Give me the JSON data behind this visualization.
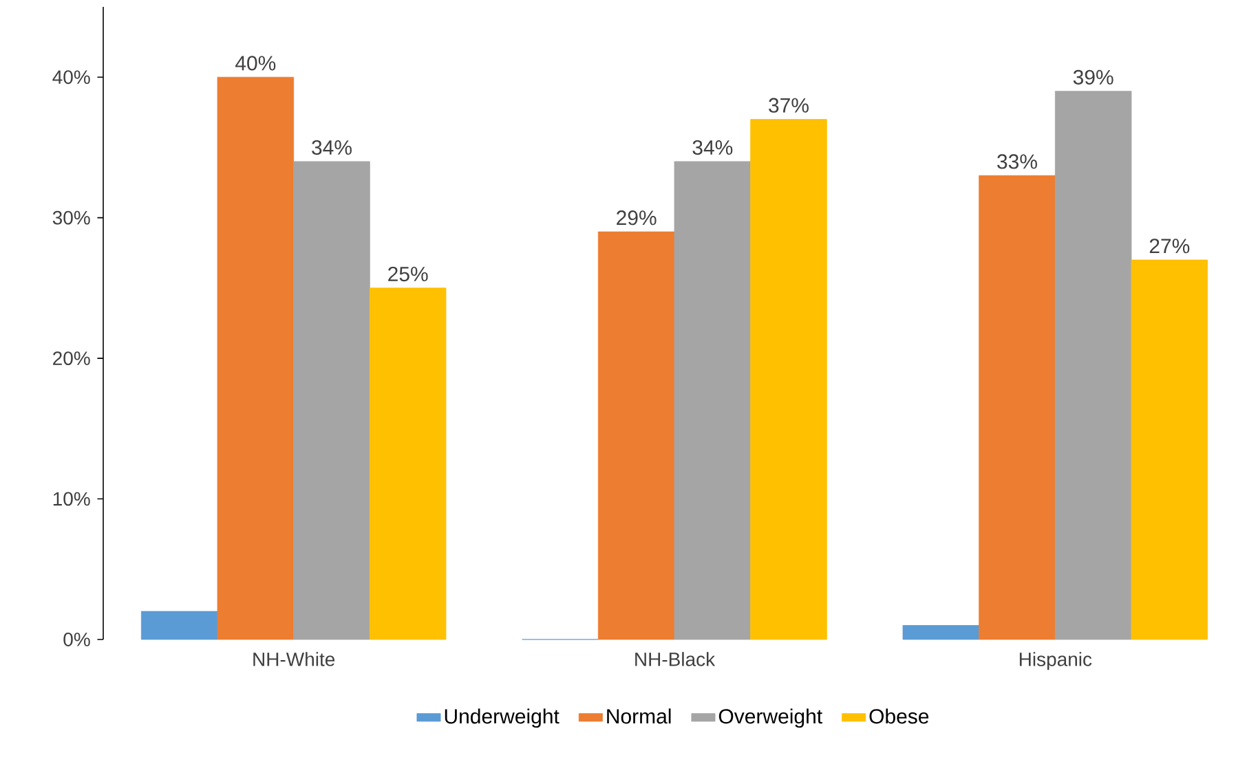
{
  "chart_data": {
    "type": "bar",
    "categories": [
      "NH-White",
      "NH-Black",
      "Hispanic"
    ],
    "series": [
      {
        "name": "Underweight",
        "color": "#5b9bd5",
        "values": [
          2,
          0,
          1
        ]
      },
      {
        "name": "Normal",
        "color": "#ed7d31",
        "values": [
          40,
          29,
          33
        ],
        "value_labels": [
          "40%",
          "29%",
          "33%"
        ]
      },
      {
        "name": "Overweight",
        "color": "#a5a5a5",
        "values": [
          34,
          34,
          39
        ],
        "value_labels": [
          "34%",
          "34%",
          "39%"
        ]
      },
      {
        "name": "Obese",
        "color": "#ffc000",
        "values": [
          25,
          37,
          27
        ],
        "value_labels": [
          "25%",
          "37%",
          "27%"
        ]
      }
    ],
    "ylim": [
      0,
      45
    ],
    "yticks": [
      {
        "value": 0,
        "label": "0%"
      },
      {
        "value": 10,
        "label": "10%"
      },
      {
        "value": 20,
        "label": "20%"
      },
      {
        "value": 30,
        "label": "30%"
      },
      {
        "value": 40,
        "label": "40%"
      }
    ],
    "legend": "bottom"
  }
}
